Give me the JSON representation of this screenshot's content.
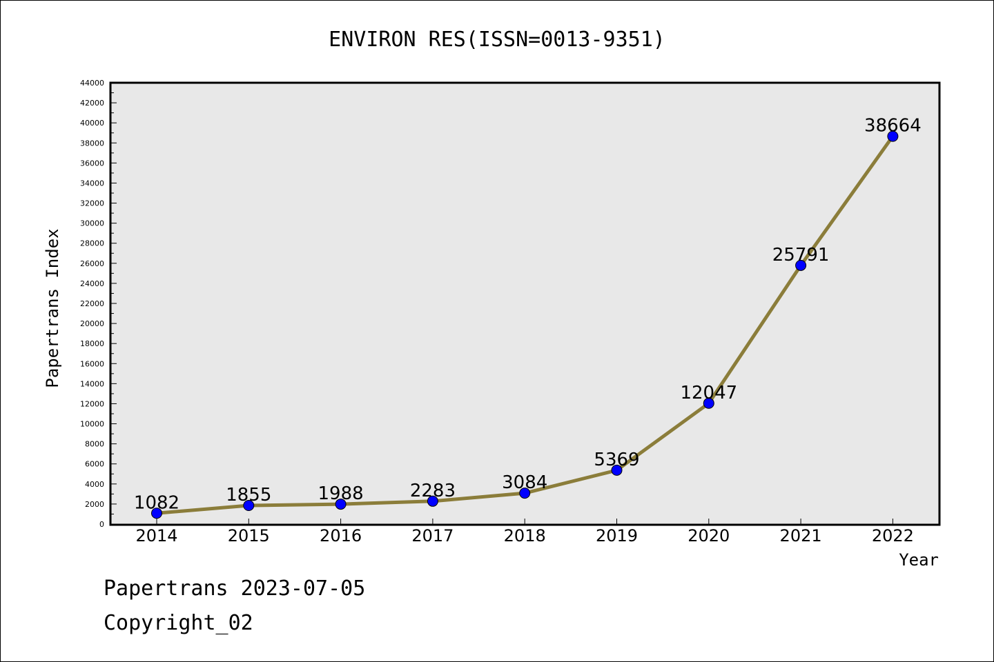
{
  "footer": {
    "line1": "Papertrans 2023-07-05",
    "line2": "Copyright_02"
  },
  "colors": {
    "plot_background": "#e8e8e8",
    "line": "#8b7d3a",
    "marker": "#0000ff"
  },
  "chart_data": {
    "type": "line",
    "title": "ENVIRON RES(ISSN=0013-9351)",
    "xlabel": "Year",
    "ylabel": "Papertrans Index",
    "x": [
      "2014",
      "2015",
      "2016",
      "2017",
      "2018",
      "2019",
      "2020",
      "2021",
      "2022"
    ],
    "series": [
      {
        "values": [
          1082,
          1855,
          1988,
          2283,
          3084,
          5369,
          12047,
          25791,
          38664
        ],
        "labels": [
          "1082",
          "1855",
          "1988",
          "2283",
          "3084",
          "5369",
          "12047",
          "25791",
          "38664"
        ]
      }
    ],
    "ylim": [
      0,
      44000
    ],
    "yticks": [
      "0",
      "2000",
      "4000",
      "6000",
      "8000",
      "10000",
      "12000",
      "14000",
      "16000",
      "18000",
      "20000",
      "22000",
      "24000",
      "26000",
      "28000",
      "30000",
      "32000",
      "34000",
      "36000",
      "38000",
      "40000",
      "42000",
      "44000"
    ],
    "grid": false,
    "legend": "none"
  }
}
